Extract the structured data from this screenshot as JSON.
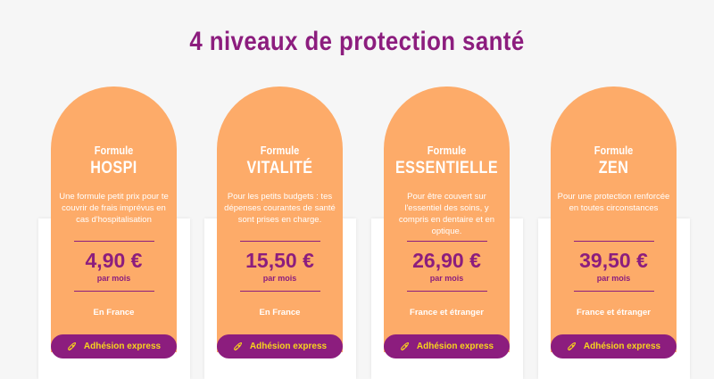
{
  "title": "4 niveaux de protection santé",
  "colors": {
    "accent": "#8c1d7e",
    "card": "#fdab69",
    "button_text": "#f7d51c"
  },
  "plans": [
    {
      "prefix": "Formule",
      "name": "HOSPI",
      "description": "Une formule petit prix pour te couvrir de frais imprévus en cas d'hospitalisation",
      "price": "4,90 €",
      "period": "par mois",
      "zone": "En France",
      "button": "Adhésion express",
      "button_icon": "rocket-icon"
    },
    {
      "prefix": "Formule",
      "name": "VITALITÉ",
      "description": "Pour les petits budgets : tes dépenses courantes de santé sont prises en charge.",
      "price": "15,50 €",
      "period": "par mois",
      "zone": "En France",
      "button": "Adhésion express",
      "button_icon": "rocket-icon"
    },
    {
      "prefix": "Formule",
      "name": "ESSENTIELLE",
      "description": "Pour être couvert sur l'essentiel des soins, y compris en dentaire et en optique.",
      "price": "26,90 €",
      "period": "par mois",
      "zone": "France et étranger",
      "button": "Adhésion express",
      "button_icon": "rocket-icon"
    },
    {
      "prefix": "Formule",
      "name": "ZEN",
      "description": "Pour une protection renforcée en toutes circonstances",
      "price": "39,50 €",
      "period": "par mois",
      "zone": "France et étranger",
      "button": "Adhésion express",
      "button_icon": "rocket-icon"
    }
  ]
}
